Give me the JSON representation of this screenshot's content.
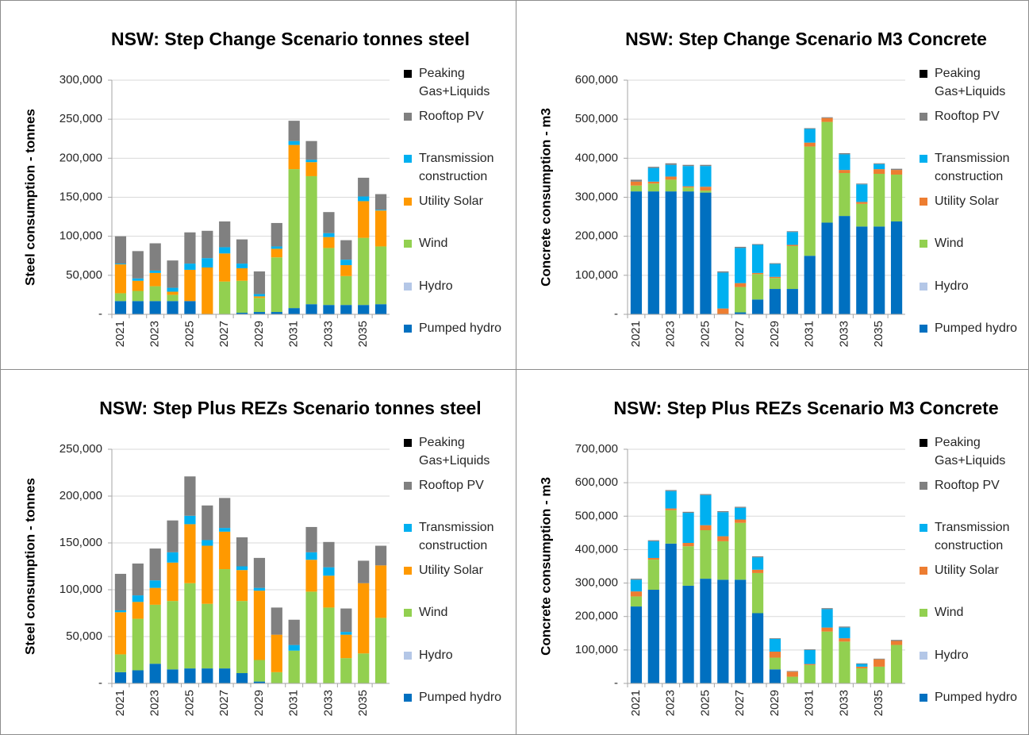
{
  "chart_data": [
    {
      "type": "bar",
      "stacked": true,
      "title": "NSW: Step Change Scenario tonnes steel",
      "y_label": "Steel consumption - tonnes",
      "categories": [
        "2021",
        null,
        "2023",
        null,
        "2025",
        null,
        "2027",
        null,
        "2029",
        null,
        "2031",
        null,
        "2033",
        null,
        "2035",
        null
      ],
      "ylim": [
        0,
        300000
      ],
      "yticks": [
        {
          "value": 0,
          "label": "-"
        },
        {
          "value": 50000,
          "label": "50,000"
        },
        {
          "value": 100000,
          "label": "100,000"
        },
        {
          "value": 150000,
          "label": "150,000"
        },
        {
          "value": 200000,
          "label": "200,000"
        },
        {
          "value": 250000,
          "label": "250,000"
        },
        {
          "value": 300000,
          "label": "300,000"
        }
      ],
      "series": [
        {
          "name": "Pumped hydro",
          "color": "#0070c0",
          "values": [
            17000,
            17000,
            17000,
            17000,
            17000,
            0,
            0,
            2000,
            3000,
            3000,
            8000,
            13000,
            12000,
            12000,
            12000,
            13000
          ]
        },
        {
          "name": "Hydro",
          "color": "#b4c7e7",
          "values": [
            0,
            0,
            0,
            0,
            0,
            0,
            0,
            0,
            0,
            0,
            0,
            0,
            0,
            0,
            0,
            0
          ]
        },
        {
          "name": "Wind",
          "color": "#92d050",
          "values": [
            10000,
            13000,
            19000,
            8000,
            0,
            0,
            42000,
            41000,
            18000,
            70000,
            178000,
            164000,
            73000,
            37000,
            86000,
            74000
          ]
        },
        {
          "name": "Utility Solar",
          "color": "#ff9900",
          "values": [
            37000,
            13000,
            17000,
            4000,
            40000,
            60000,
            36000,
            16000,
            2000,
            11000,
            31000,
            18000,
            14000,
            14000,
            47000,
            46000
          ]
        },
        {
          "name": "Transmission construction",
          "color": "#00b0f0",
          "values": [
            1000,
            3000,
            3000,
            5000,
            8000,
            12000,
            8000,
            6000,
            3000,
            3000,
            5000,
            3000,
            5000,
            7000,
            6000,
            1000
          ]
        },
        {
          "name": "Rooftop PV",
          "color": "#808080",
          "values": [
            35000,
            35000,
            35000,
            35000,
            40000,
            35000,
            33000,
            31000,
            29000,
            30000,
            26000,
            24000,
            27000,
            25000,
            24000,
            20000
          ]
        },
        {
          "name": "Peaking Gas+Liquids",
          "color": "#000000",
          "values": [
            0,
            0,
            0,
            0,
            0,
            0,
            0,
            0,
            0,
            0,
            0,
            0,
            0,
            0,
            0,
            0
          ]
        }
      ]
    },
    {
      "type": "bar",
      "stacked": true,
      "title": "NSW: Step Change Scenario M3 Concrete",
      "y_label": "Concrete consumption - m3",
      "categories": [
        "2021",
        null,
        "2023",
        null,
        "2025",
        null,
        "2027",
        null,
        "2029",
        null,
        "2031",
        null,
        "2033",
        null,
        "2035",
        null
      ],
      "ylim": [
        0,
        600000
      ],
      "yticks": [
        {
          "value": 0,
          "label": "-"
        },
        {
          "value": 100000,
          "label": "100,000"
        },
        {
          "value": 200000,
          "label": "200,000"
        },
        {
          "value": 300000,
          "label": "300,000"
        },
        {
          "value": 400000,
          "label": "400,000"
        },
        {
          "value": 500000,
          "label": "500,000"
        },
        {
          "value": 600000,
          "label": "600,000"
        }
      ],
      "series": [
        {
          "name": "Pumped hydro",
          "color": "#0070c0",
          "values": [
            315000,
            315000,
            315000,
            315000,
            312000,
            0,
            5000,
            38000,
            65000,
            65000,
            150000,
            235000,
            252000,
            225000,
            225000,
            238000
          ]
        },
        {
          "name": "Hydro",
          "color": "#b4c7e7",
          "values": [
            0,
            0,
            0,
            0,
            0,
            0,
            0,
            0,
            0,
            0,
            0,
            0,
            0,
            0,
            0,
            0
          ]
        },
        {
          "name": "Wind",
          "color": "#92d050",
          "values": [
            15000,
            20000,
            30000,
            10000,
            5000,
            0,
            65000,
            65000,
            28000,
            110000,
            280000,
            258000,
            110000,
            58000,
            135000,
            120000
          ]
        },
        {
          "name": "Utility Solar",
          "color": "#ed7d31",
          "values": [
            10000,
            5000,
            8000,
            3000,
            10000,
            15000,
            10000,
            3000,
            3000,
            3000,
            10000,
            10000,
            8000,
            5000,
            12000,
            12000
          ]
        },
        {
          "name": "Transmission construction",
          "color": "#00b0f0",
          "values": [
            0,
            35000,
            30000,
            52000,
            53000,
            92000,
            90000,
            72000,
            33000,
            33000,
            35000,
            0,
            40000,
            45000,
            13000,
            0
          ]
        },
        {
          "name": "Rooftop PV",
          "color": "#808080",
          "values": [
            5000,
            3000,
            4000,
            3000,
            3000,
            3000,
            3000,
            2000,
            2000,
            2000,
            2000,
            2000,
            3000,
            2000,
            2000,
            3000
          ]
        },
        {
          "name": "Peaking Gas+Liquids",
          "color": "#000000",
          "values": [
            0,
            0,
            0,
            0,
            0,
            0,
            0,
            0,
            0,
            0,
            0,
            0,
            0,
            0,
            0,
            0
          ]
        }
      ]
    },
    {
      "type": "bar",
      "stacked": true,
      "title": "NSW: Step Plus REZs Scenario tonnes steel",
      "y_label": "Steel consumption - tonnes",
      "categories": [
        "2021",
        null,
        "2023",
        null,
        "2025",
        null,
        "2027",
        null,
        "2029",
        null,
        "2031",
        null,
        "2033",
        null,
        "2035",
        null
      ],
      "ylim": [
        0,
        250000
      ],
      "yticks": [
        {
          "value": 0,
          "label": "-"
        },
        {
          "value": 50000,
          "label": "50,000"
        },
        {
          "value": 100000,
          "label": "100,000"
        },
        {
          "value": 150000,
          "label": "150,000"
        },
        {
          "value": 200000,
          "label": "200,000"
        },
        {
          "value": 250000,
          "label": "250,000"
        }
      ],
      "series": [
        {
          "name": "Pumped hydro",
          "color": "#0070c0",
          "values": [
            12000,
            14000,
            21000,
            15000,
            16000,
            16000,
            16000,
            11000,
            2000,
            0,
            0,
            0,
            0,
            0,
            0,
            0
          ]
        },
        {
          "name": "Hydro",
          "color": "#b4c7e7",
          "values": [
            0,
            0,
            0,
            0,
            0,
            0,
            0,
            0,
            0,
            0,
            0,
            0,
            0,
            0,
            0,
            0
          ]
        },
        {
          "name": "Wind",
          "color": "#92d050",
          "values": [
            19000,
            55000,
            63000,
            73000,
            91000,
            69000,
            106000,
            77000,
            23000,
            12000,
            35000,
            98000,
            81000,
            27000,
            32000,
            70000
          ]
        },
        {
          "name": "Utility Solar",
          "color": "#ff9900",
          "values": [
            45000,
            18000,
            18000,
            41000,
            63000,
            62000,
            40000,
            33000,
            74000,
            40000,
            0,
            34000,
            34000,
            25000,
            75000,
            56000
          ]
        },
        {
          "name": "Transmission construction",
          "color": "#00b0f0",
          "values": [
            2000,
            7000,
            8000,
            11000,
            9000,
            6000,
            4000,
            4000,
            3000,
            0,
            6000,
            8000,
            9000,
            3000,
            0,
            0
          ]
        },
        {
          "name": "Rooftop PV",
          "color": "#808080",
          "values": [
            39000,
            34000,
            34000,
            34000,
            42000,
            37000,
            32000,
            31000,
            32000,
            29000,
            27000,
            27000,
            27000,
            25000,
            24000,
            21000
          ]
        },
        {
          "name": "Peaking Gas+Liquids",
          "color": "#000000",
          "values": [
            0,
            0,
            0,
            0,
            0,
            0,
            0,
            0,
            0,
            0,
            0,
            0,
            0,
            0,
            0,
            0
          ]
        }
      ]
    },
    {
      "type": "bar",
      "stacked": true,
      "title": "NSW: Step Plus REZs Scenario M3 Concrete",
      "y_label": "Concrete consumption - m3",
      "categories": [
        "2021",
        null,
        "2023",
        null,
        "2025",
        null,
        "2027",
        null,
        "2029",
        null,
        "2031",
        null,
        "2033",
        null,
        "2035",
        null
      ],
      "ylim": [
        0,
        700000
      ],
      "yticks": [
        {
          "value": 0,
          "label": "-"
        },
        {
          "value": 100000,
          "label": "100,000"
        },
        {
          "value": 200000,
          "label": "200,000"
        },
        {
          "value": 300000,
          "label": "300,000"
        },
        {
          "value": 400000,
          "label": "400,000"
        },
        {
          "value": 500000,
          "label": "500,000"
        },
        {
          "value": 600000,
          "label": "600,000"
        },
        {
          "value": 700000,
          "label": "700,000"
        }
      ],
      "series": [
        {
          "name": "Pumped hydro",
          "color": "#0070c0",
          "values": [
            230000,
            280000,
            418000,
            292000,
            313000,
            310000,
            310000,
            210000,
            42000,
            0,
            0,
            0,
            0,
            0,
            0,
            0
          ]
        },
        {
          "name": "Hydro",
          "color": "#b4c7e7",
          "values": [
            0,
            0,
            0,
            0,
            0,
            0,
            0,
            0,
            0,
            0,
            0,
            0,
            0,
            0,
            0,
            0
          ]
        },
        {
          "name": "Wind",
          "color": "#92d050",
          "values": [
            30000,
            90000,
            100000,
            118000,
            145000,
            115000,
            170000,
            120000,
            35000,
            20000,
            55000,
            155000,
            125000,
            45000,
            50000,
            115000
          ]
        },
        {
          "name": "Utility Solar",
          "color": "#ed7d31",
          "values": [
            15000,
            5000,
            5000,
            10000,
            15000,
            15000,
            10000,
            10000,
            18000,
            15000,
            3000,
            12000,
            10000,
            5000,
            22000,
            12000
          ]
        },
        {
          "name": "Transmission construction",
          "color": "#00b0f0",
          "values": [
            35000,
            50000,
            52000,
            90000,
            90000,
            72000,
            35000,
            37000,
            38000,
            0,
            42000,
            55000,
            32000,
            8000,
            0,
            0
          ]
        },
        {
          "name": "Rooftop PV",
          "color": "#808080",
          "values": [
            3000,
            3000,
            3000,
            3000,
            3000,
            3000,
            3000,
            3000,
            2000,
            2000,
            2000,
            3000,
            3000,
            2000,
            2000,
            3000
          ]
        },
        {
          "name": "Peaking Gas+Liquids",
          "color": "#000000",
          "values": [
            0,
            0,
            0,
            0,
            0,
            0,
            0,
            0,
            0,
            0,
            0,
            0,
            0,
            0,
            0,
            0
          ]
        }
      ]
    }
  ]
}
